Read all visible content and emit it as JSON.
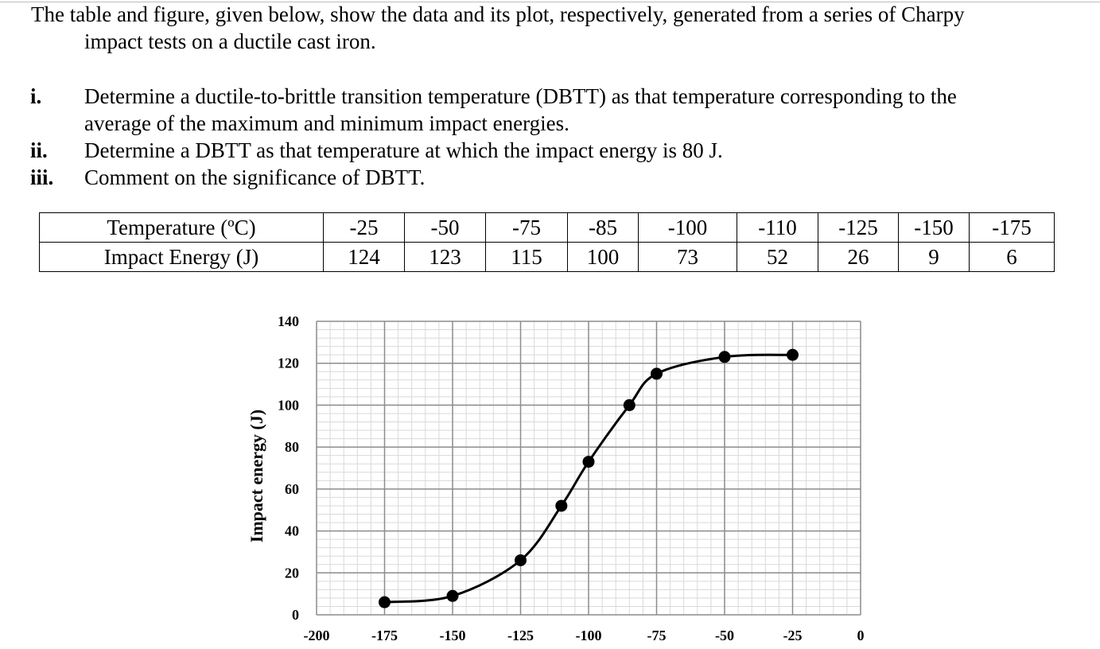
{
  "intro": {
    "line1": "The table and figure, given below, show the data and its plot, respectively, generated from a series of Charpy",
    "line2": "impact tests on a ductile cast iron."
  },
  "questions": [
    {
      "num": "i.",
      "lines": [
        "Determine a ductile-to-brittle transition temperature (DBTT) as that temperature corresponding to the",
        "average of the maximum and minimum impact energies."
      ]
    },
    {
      "num": "ii.",
      "lines": [
        "Determine a DBTT as that temperature at which the impact energy is 80 J."
      ]
    },
    {
      "num": "iii.",
      "lines": [
        "Comment on the significance of DBTT."
      ]
    }
  ],
  "table": {
    "row_headers": [
      "Temperature (ºC)",
      "Impact Energy (J)"
    ],
    "temperatures": [
      "-25",
      "-50",
      "-75",
      "-85",
      "-100",
      "-110",
      "-125",
      "-150",
      "-175"
    ],
    "energies": [
      "124",
      "123",
      "115",
      "100",
      "73",
      "52",
      "26",
      "9",
      "6"
    ]
  },
  "chart_data": {
    "type": "line",
    "title": "",
    "xlabel": "",
    "ylabel": "Impact energy (J)",
    "xlim": [
      -200,
      0
    ],
    "ylim": [
      0,
      140
    ],
    "x_ticks": [
      -200,
      -175,
      -150,
      -125,
      -100,
      -75,
      -50,
      -25,
      0
    ],
    "y_ticks": [
      0,
      20,
      40,
      60,
      80,
      100,
      120,
      140
    ],
    "grid": true,
    "legend": "none",
    "series": [
      {
        "x": [
          -175,
          -150,
          -125,
          -110,
          -100,
          -85,
          -75,
          -50,
          -25
        ],
        "y": [
          6,
          9,
          26,
          52,
          73,
          100,
          115,
          123,
          124
        ],
        "marker": "filled-circle",
        "smooth": true,
        "color": "#000000"
      }
    ],
    "grid_major_color": "#8c8c8c",
    "grid_minor_color": "#d9d9d9"
  }
}
